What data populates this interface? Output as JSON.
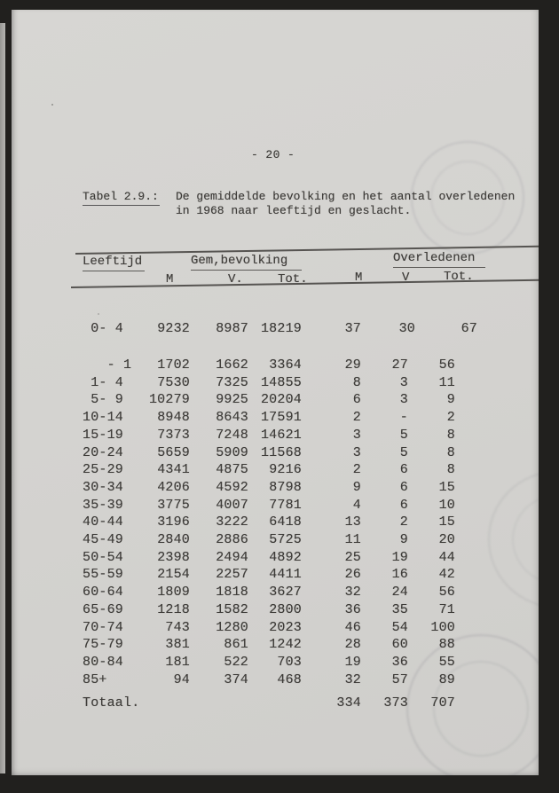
{
  "page": {
    "page_number": "- 20 -"
  },
  "title": {
    "label": "Tabel 2.9.:",
    "line1": "De gemiddelde bevolking en het aantal overledenen",
    "line2": "in 1968 naar leeftijd en geslacht."
  },
  "table": {
    "col_groups": [
      "Leeftijd",
      "Gem,bevolking",
      "Overledenen"
    ],
    "sub_headers": [
      "M",
      "V.",
      "Tot.",
      "M",
      "V",
      "Tot."
    ],
    "rows": [
      {
        "age": " 0- 4",
        "bev_m": "9232",
        "bev_v": "8987",
        "bev_tot": "18219",
        "ov_m": "37",
        "ov_v": "30",
        "ov_tot": "67"
      },
      {
        "age": "   - 1",
        "bev_m": "1702",
        "bev_v": "1662",
        "bev_tot": "3364",
        "ov_m": "29",
        "ov_v": "27",
        "ov_tot": "56"
      },
      {
        "age": " 1- 4",
        "bev_m": "7530",
        "bev_v": "7325",
        "bev_tot": "14855",
        "ov_m": "8",
        "ov_v": "3",
        "ov_tot": "11"
      },
      {
        "age": " 5- 9",
        "bev_m": "10279",
        "bev_v": "9925",
        "bev_tot": "20204",
        "ov_m": "6",
        "ov_v": "3",
        "ov_tot": "9"
      },
      {
        "age": "10-14",
        "bev_m": "8948",
        "bev_v": "8643",
        "bev_tot": "17591",
        "ov_m": "2",
        "ov_v": "-",
        "ov_tot": "2"
      },
      {
        "age": "15-19",
        "bev_m": "7373",
        "bev_v": "7248",
        "bev_tot": "14621",
        "ov_m": "3",
        "ov_v": "5",
        "ov_tot": "8"
      },
      {
        "age": "20-24",
        "bev_m": "5659",
        "bev_v": "5909",
        "bev_tot": "11568",
        "ov_m": "3",
        "ov_v": "5",
        "ov_tot": "8"
      },
      {
        "age": "25-29",
        "bev_m": "4341",
        "bev_v": "4875",
        "bev_tot": "9216",
        "ov_m": "2",
        "ov_v": "6",
        "ov_tot": "8"
      },
      {
        "age": "30-34",
        "bev_m": "4206",
        "bev_v": "4592",
        "bev_tot": "8798",
        "ov_m": "9",
        "ov_v": "6",
        "ov_tot": "15"
      },
      {
        "age": "35-39",
        "bev_m": "3775",
        "bev_v": "4007",
        "bev_tot": "7781",
        "ov_m": "4",
        "ov_v": "6",
        "ov_tot": "10"
      },
      {
        "age": "40-44",
        "bev_m": "3196",
        "bev_v": "3222",
        "bev_tot": "6418",
        "ov_m": "13",
        "ov_v": "2",
        "ov_tot": "15"
      },
      {
        "age": "45-49",
        "bev_m": "2840",
        "bev_v": "2886",
        "bev_tot": "5725",
        "ov_m": "11",
        "ov_v": "9",
        "ov_tot": "20"
      },
      {
        "age": "50-54",
        "bev_m": "2398",
        "bev_v": "2494",
        "bev_tot": "4892",
        "ov_m": "25",
        "ov_v": "19",
        "ov_tot": "44"
      },
      {
        "age": "55-59",
        "bev_m": "2154",
        "bev_v": "2257",
        "bev_tot": "4411",
        "ov_m": "26",
        "ov_v": "16",
        "ov_tot": "42"
      },
      {
        "age": "60-64",
        "bev_m": "1809",
        "bev_v": "1818",
        "bev_tot": "3627",
        "ov_m": "32",
        "ov_v": "24",
        "ov_tot": "56"
      },
      {
        "age": "65-69",
        "bev_m": "1218",
        "bev_v": "1582",
        "bev_tot": "2800",
        "ov_m": "36",
        "ov_v": "35",
        "ov_tot": "71"
      },
      {
        "age": "70-74",
        "bev_m": "743",
        "bev_v": "1280",
        "bev_tot": "2023",
        "ov_m": "46",
        "ov_v": "54",
        "ov_tot": "100"
      },
      {
        "age": "75-79",
        "bev_m": "381",
        "bev_v": "861",
        "bev_tot": "1242",
        "ov_m": "28",
        "ov_v": "60",
        "ov_tot": "88"
      },
      {
        "age": "80-84",
        "bev_m": "181",
        "bev_v": "522",
        "bev_tot": "703",
        "ov_m": "19",
        "ov_v": "36",
        "ov_tot": "55"
      },
      {
        "age": "85+",
        "bev_m": "94",
        "bev_v": "374",
        "bev_tot": "468",
        "ov_m": "32",
        "ov_v": "57",
        "ov_tot": "89"
      }
    ],
    "total_row": {
      "label": "Totaal.",
      "ov_m": "334",
      "ov_v": "373",
      "ov_tot": "707"
    }
  },
  "colors": {
    "paper": "#d4d3d0",
    "ink": "#3e3c39",
    "rule": "#484643",
    "scanner_background": "#21201e",
    "stamp": "#80828880"
  }
}
